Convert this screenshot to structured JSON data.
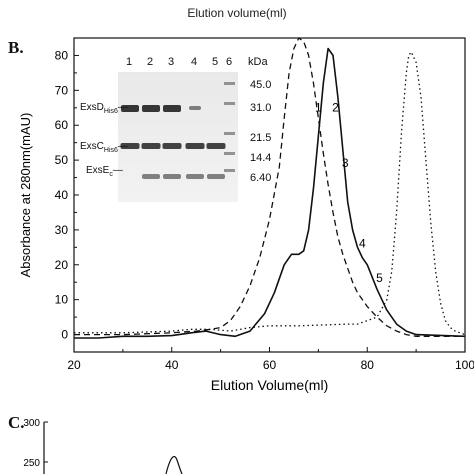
{
  "header": {
    "title": "Elution volume(ml)"
  },
  "panel_b": {
    "label": "B."
  },
  "panel_c": {
    "label": "C."
  },
  "gel": {
    "lanes": [
      "1",
      "2",
      "3",
      "4",
      "5",
      "6"
    ],
    "unit": "kDa",
    "markers": [
      "45.0",
      "31.0",
      "21.5",
      "14.4",
      "6.40"
    ],
    "bands": [
      {
        "main": "ExsD",
        "sub": "His6"
      },
      {
        "main": "ExsC",
        "sub": "His6"
      },
      {
        "main": "ExsE",
        "sub": "c"
      }
    ]
  },
  "chart_data": [
    {
      "type": "line",
      "xlabel": "Elution Volume(ml)",
      "ylabel": "Absorbance at 280nm(mAU)",
      "xlim": [
        20,
        100
      ],
      "ylim": [
        -5,
        85
      ],
      "x_ticks": [
        "20",
        "40",
        "60",
        "80",
        "100"
      ],
      "y_ticks": [
        "0",
        "10",
        "20",
        "30",
        "40",
        "50",
        "60",
        "70",
        "80"
      ],
      "series": [
        {
          "style": "solid",
          "x": [
            20,
            25,
            30,
            35,
            40,
            44,
            47,
            50,
            53,
            56,
            59,
            61,
            63,
            64.5,
            66,
            67,
            68,
            69,
            70,
            71,
            72,
            73,
            74,
            75,
            76,
            77,
            78,
            79,
            80,
            82,
            84,
            86,
            88,
            90,
            100
          ],
          "y": [
            -1,
            -1,
            -0.5,
            -0.5,
            -0.3,
            0.5,
            1,
            0,
            -0.5,
            1,
            6,
            12,
            20,
            23,
            23,
            24,
            30,
            42,
            57,
            72,
            82,
            80,
            68,
            53,
            38,
            30,
            25,
            22,
            20,
            13,
            7,
            3,
            1,
            0,
            -0.5
          ]
        },
        {
          "style": "dashed",
          "x": [
            20,
            30,
            40,
            45,
            48,
            50,
            52,
            54,
            56,
            58,
            60,
            62,
            63,
            64,
            65,
            66,
            67,
            68,
            69,
            70,
            71,
            72,
            73,
            74,
            75,
            76,
            77,
            78,
            80,
            82,
            84,
            86,
            88,
            90,
            100
          ],
          "y": [
            0,
            0,
            0.5,
            1,
            1.5,
            2,
            4,
            8,
            14,
            22,
            33,
            48,
            62,
            75,
            82,
            85,
            84,
            80,
            72,
            62,
            52,
            43,
            35,
            28,
            23,
            19,
            15,
            12,
            8,
            5,
            2.5,
            1,
            0,
            -0.5,
            -0.5
          ]
        },
        {
          "style": "dotted",
          "x": [
            20,
            30,
            40,
            44,
            48,
            52,
            56,
            60,
            66,
            72,
            76,
            78,
            80,
            82,
            84,
            85,
            86,
            87,
            88,
            88.5,
            89,
            90,
            91,
            92,
            93,
            94,
            95,
            96,
            97,
            98,
            99,
            100
          ],
          "y": [
            0.5,
            0.5,
            1,
            1.5,
            1.5,
            1,
            2,
            2.5,
            2.5,
            2.8,
            3,
            3,
            4,
            5,
            10,
            18,
            35,
            58,
            75,
            80,
            81,
            78,
            68,
            50,
            32,
            18,
            9,
            4,
            2,
            1,
            0.5,
            0
          ]
        }
      ],
      "annotations": [
        {
          "text": "1",
          "x": 70,
          "y": 64
        },
        {
          "text": "2",
          "x": 73.5,
          "y": 64
        },
        {
          "text": "3",
          "x": 75.5,
          "y": 48
        },
        {
          "text": "4",
          "x": 79,
          "y": 25
        },
        {
          "text": "5",
          "x": 82.5,
          "y": 15
        }
      ]
    },
    {
      "type": "line",
      "y_ticks": [
        "300",
        "250"
      ],
      "ylim": [
        250,
        300
      ]
    }
  ]
}
